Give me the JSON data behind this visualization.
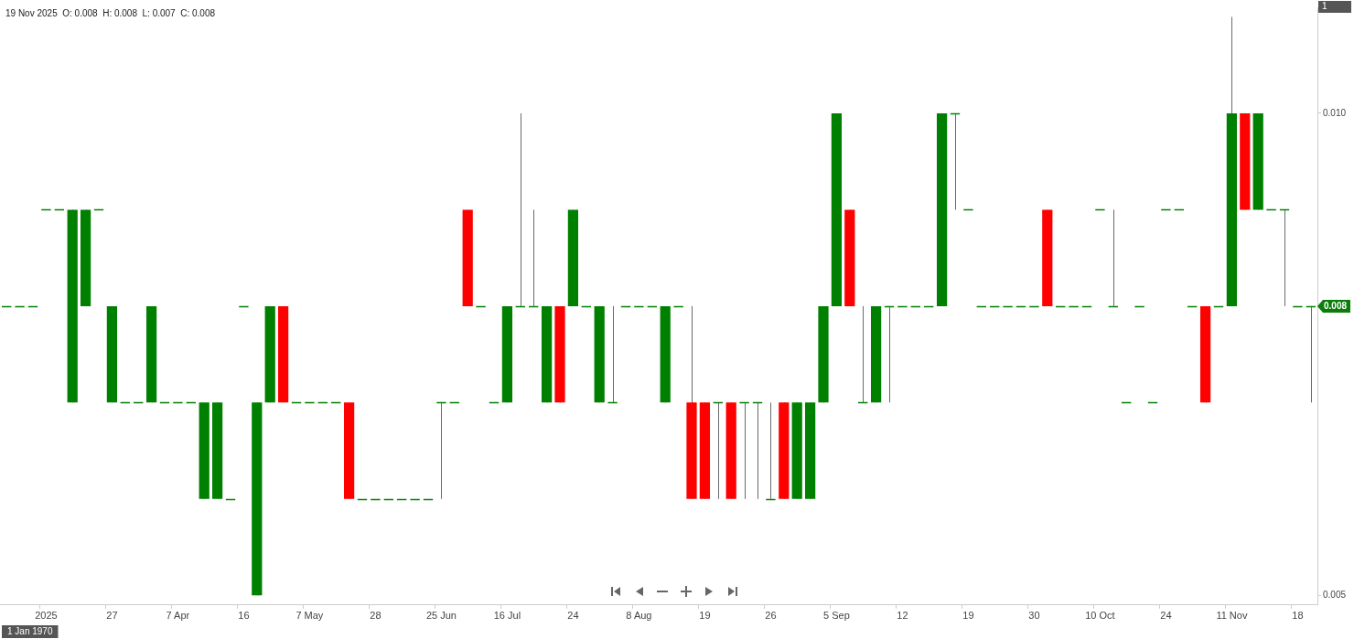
{
  "chart_data": {
    "type": "candlestick",
    "categories": [
      null,
      null,
      null,
      "2025",
      null,
      null,
      null,
      null,
      "27",
      null,
      null,
      null,
      null,
      "7 Apr",
      null,
      null,
      null,
      null,
      "16",
      null,
      null,
      null,
      null,
      "7 May",
      null,
      null,
      null,
      null,
      "28",
      null,
      null,
      null,
      null,
      "25 Jun",
      null,
      null,
      null,
      null,
      "16 Jul",
      null,
      null,
      null,
      null,
      "24",
      null,
      null,
      null,
      null,
      "8 Aug",
      null,
      null,
      null,
      null,
      "19",
      null,
      null,
      null,
      null,
      "26",
      null,
      null,
      null,
      null,
      "5 Sep",
      null,
      null,
      null,
      null,
      "12",
      null,
      null,
      null,
      null,
      "19",
      null,
      null,
      null,
      null,
      "30",
      null,
      null,
      null,
      null,
      "10 Oct",
      null,
      null,
      null,
      null,
      "24",
      null,
      null,
      null,
      null,
      "11 Nov",
      null,
      null,
      null,
      null,
      "18",
      null
    ],
    "ohlc": [
      [
        0.008,
        0.008,
        0.008,
        0.008
      ],
      [
        0.008,
        0.008,
        0.008,
        0.008
      ],
      [
        0.008,
        0.008,
        0.008,
        0.008
      ],
      [
        0.009,
        0.009,
        0.009,
        0.009
      ],
      [
        0.009,
        0.009,
        0.009,
        0.009
      ],
      [
        0.007,
        0.009,
        0.007,
        0.009
      ],
      [
        0.008,
        0.009,
        0.008,
        0.009
      ],
      [
        0.009,
        0.009,
        0.009,
        0.009
      ],
      [
        0.007,
        0.008,
        0.007,
        0.008
      ],
      [
        0.007,
        0.007,
        0.007,
        0.007
      ],
      [
        0.007,
        0.007,
        0.007,
        0.007
      ],
      [
        0.007,
        0.008,
        0.007,
        0.008
      ],
      [
        0.007,
        0.007,
        0.007,
        0.007
      ],
      [
        0.007,
        0.007,
        0.007,
        0.007
      ],
      [
        0.007,
        0.007,
        0.007,
        0.007
      ],
      [
        0.006,
        0.007,
        0.006,
        0.007
      ],
      [
        0.006,
        0.007,
        0.006,
        0.007
      ],
      [
        0.006,
        0.006,
        0.006,
        0.006
      ],
      [
        0.008,
        0.008,
        0.008,
        0.008
      ],
      [
        0.005,
        0.007,
        0.005,
        0.007
      ],
      [
        0.007,
        0.008,
        0.007,
        0.008
      ],
      [
        0.008,
        0.008,
        0.007,
        0.007
      ],
      [
        0.007,
        0.007,
        0.007,
        0.007
      ],
      [
        0.007,
        0.007,
        0.007,
        0.007
      ],
      [
        0.007,
        0.007,
        0.007,
        0.007
      ],
      [
        0.007,
        0.007,
        0.007,
        0.007
      ],
      [
        0.007,
        0.007,
        0.006,
        0.006
      ],
      [
        0.006,
        0.006,
        0.006,
        0.006
      ],
      [
        0.006,
        0.006,
        0.006,
        0.006
      ],
      [
        0.006,
        0.006,
        0.006,
        0.006
      ],
      [
        0.006,
        0.006,
        0.006,
        0.006
      ],
      [
        0.006,
        0.006,
        0.006,
        0.006
      ],
      [
        0.006,
        0.006,
        0.006,
        0.006
      ],
      [
        0.007,
        0.007,
        0.006,
        0.007
      ],
      [
        0.007,
        0.007,
        0.007,
        0.007
      ],
      [
        0.009,
        0.009,
        0.008,
        0.008
      ],
      [
        0.008,
        0.008,
        0.008,
        0.008
      ],
      [
        0.007,
        0.007,
        0.007,
        0.007
      ],
      [
        0.007,
        0.008,
        0.007,
        0.008
      ],
      [
        0.008,
        0.01,
        0.008,
        0.008
      ],
      [
        0.008,
        0.009,
        0.008,
        0.008
      ],
      [
        0.007,
        0.008,
        0.007,
        0.008
      ],
      [
        0.008,
        0.008,
        0.007,
        0.007
      ],
      [
        0.008,
        0.009,
        0.008,
        0.009
      ],
      [
        0.008,
        0.008,
        0.008,
        0.008
      ],
      [
        0.007,
        0.008,
        0.007,
        0.008
      ],
      [
        0.007,
        0.008,
        0.007,
        0.007
      ],
      [
        0.008,
        0.008,
        0.008,
        0.008
      ],
      [
        0.008,
        0.008,
        0.008,
        0.008
      ],
      [
        0.008,
        0.008,
        0.008,
        0.008
      ],
      [
        0.007,
        0.008,
        0.007,
        0.008
      ],
      [
        0.008,
        0.008,
        0.008,
        0.008
      ],
      [
        0.007,
        0.008,
        0.006,
        0.006
      ],
      [
        0.007,
        0.007,
        0.006,
        0.006
      ],
      [
        0.007,
        0.007,
        0.006,
        0.007
      ],
      [
        0.007,
        0.007,
        0.006,
        0.006
      ],
      [
        0.007,
        0.007,
        0.006,
        0.007
      ],
      [
        0.007,
        0.007,
        0.006,
        0.007
      ],
      [
        0.006,
        0.007,
        0.006,
        0.006
      ],
      [
        0.007,
        0.007,
        0.006,
        0.006
      ],
      [
        0.006,
        0.007,
        0.006,
        0.007
      ],
      [
        0.006,
        0.007,
        0.006,
        0.007
      ],
      [
        0.007,
        0.008,
        0.007,
        0.008
      ],
      [
        0.008,
        0.01,
        0.008,
        0.01
      ],
      [
        0.009,
        0.009,
        0.008,
        0.008
      ],
      [
        0.007,
        0.008,
        0.007,
        0.007
      ],
      [
        0.007,
        0.008,
        0.007,
        0.008
      ],
      [
        0.008,
        0.008,
        0.007,
        0.008
      ],
      [
        0.008,
        0.008,
        0.008,
        0.008
      ],
      [
        0.008,
        0.008,
        0.008,
        0.008
      ],
      [
        0.008,
        0.008,
        0.008,
        0.008
      ],
      [
        0.008,
        0.01,
        0.008,
        0.01
      ],
      [
        0.01,
        0.01,
        0.009,
        0.01
      ],
      [
        0.009,
        0.009,
        0.009,
        0.009
      ],
      [
        0.008,
        0.008,
        0.008,
        0.008
      ],
      [
        0.008,
        0.008,
        0.008,
        0.008
      ],
      [
        0.008,
        0.008,
        0.008,
        0.008
      ],
      [
        0.008,
        0.008,
        0.008,
        0.008
      ],
      [
        0.008,
        0.008,
        0.008,
        0.008
      ],
      [
        0.009,
        0.009,
        0.008,
        0.008
      ],
      [
        0.008,
        0.008,
        0.008,
        0.008
      ],
      [
        0.008,
        0.008,
        0.008,
        0.008
      ],
      [
        0.008,
        0.008,
        0.008,
        0.008
      ],
      [
        0.009,
        0.009,
        0.009,
        0.009
      ],
      [
        0.008,
        0.009,
        0.008,
        0.008
      ],
      [
        0.007,
        0.007,
        0.007,
        0.007
      ],
      [
        0.008,
        0.008,
        0.008,
        0.008
      ],
      [
        0.007,
        0.007,
        0.007,
        0.007
      ],
      [
        0.009,
        0.009,
        0.009,
        0.009
      ],
      [
        0.009,
        0.009,
        0.009,
        0.009
      ],
      [
        0.008,
        0.008,
        0.008,
        0.008
      ],
      [
        0.008,
        0.008,
        0.007,
        0.007
      ],
      [
        0.008,
        0.008,
        0.008,
        0.008
      ],
      [
        0.008,
        0.011,
        0.008,
        0.01
      ],
      [
        0.01,
        0.01,
        0.009,
        0.009
      ],
      [
        0.009,
        0.01,
        0.009,
        0.01
      ],
      [
        0.009,
        0.009,
        0.009,
        0.009
      ],
      [
        0.009,
        0.009,
        0.008,
        0.009
      ],
      [
        0.008,
        0.008,
        0.008,
        0.008
      ],
      [
        0.008,
        0.008,
        0.007,
        0.008
      ]
    ],
    "colors": [
      "#008000",
      "#008000",
      "#008000",
      "#008000",
      "#008000",
      "#008000",
      "#008000",
      "#008000",
      "#008000",
      "#008000",
      "#008000",
      "#008000",
      "#008000",
      "#008000",
      "#008000",
      "#008000",
      "#008000",
      "#008000",
      "#008000",
      "#008000",
      "#008000",
      "#ff0000",
      "#008000",
      "#008000",
      "#008000",
      "#008000",
      "#ff0000",
      "#008000",
      "#008000",
      "#008000",
      "#008000",
      "#008000",
      "#008000",
      "#008000",
      "#008000",
      "#ff0000",
      "#008000",
      "#008000",
      "#008000",
      "#008000",
      "#008000",
      "#008000",
      "#ff0000",
      "#008000",
      "#008000",
      "#008000",
      "#008000",
      "#008000",
      "#008000",
      "#008000",
      "#008000",
      "#008000",
      "#ff0000",
      "#ff0000",
      "#008000",
      "#ff0000",
      "#008000",
      "#008000",
      "#008000",
      "#ff0000",
      "#008000",
      "#008000",
      "#008000",
      "#008000",
      "#ff0000",
      "#008000",
      "#008000",
      "#008000",
      "#008000",
      "#008000",
      "#008000",
      "#008000",
      "#008000",
      "#008000",
      "#008000",
      "#008000",
      "#008000",
      "#008000",
      "#008000",
      "#ff0000",
      "#008000",
      "#008000",
      "#008000",
      "#008000",
      "#008000",
      "#008000",
      "#008000",
      "#008000",
      "#008000",
      "#008000",
      "#008000",
      "#ff0000",
      "#008000",
      "#008000",
      "#ff0000",
      "#008000",
      "#008000",
      "#008000",
      "#008000",
      "#008000"
    ],
    "ylim": [
      0.0049,
      0.0111
    ],
    "yticks": [
      0.005,
      {
        "value": 0.01,
        "label": "0.010"
      }
    ],
    "legend": false,
    "grid": false,
    "annotations": [
      "19 Nov 2025  O: 0.008  H: 0.008  L: 0.007  C: 0.008",
      "1 Jan 1970",
      "1",
      {
        "text": "0.008",
        "y": 0.008
      }
    ]
  }
}
